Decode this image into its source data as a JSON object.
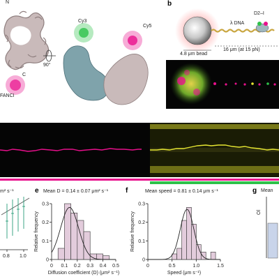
{
  "panel_a": {
    "label_n": "N",
    "label_c": "C",
    "label_fanci": "FANCI",
    "label_cy3": "Cy3",
    "label_cy5": "Cy5",
    "rotation": "90°"
  },
  "panel_b": {
    "letter": "b",
    "dna_label": "λ DNA",
    "complex_label": "D2–I",
    "bead_label": "4.8 μm bead",
    "distance_label": "16 μm (at 15 pN)"
  },
  "panel_d_fragment": {
    "ylabel_fragment": "m² s⁻¹",
    "x_ticks": [
      "0.8",
      "1.0"
    ]
  },
  "panel_e": {
    "letter": "e",
    "title": "Mean D = 0.14 ± 0.07 μm² s⁻¹",
    "chart_data": {
      "type": "bar",
      "title": "Mean D = 0.14 ± 0.07 μm² s⁻¹",
      "xlabel": "Diffusion coefficient (D) (μm² s⁻¹)",
      "ylabel": "Relative frequency",
      "xlim": [
        0,
        0.5
      ],
      "ylim": [
        0,
        0.3
      ],
      "x_ticks": [
        "0",
        "0.1",
        "0.2",
        "0.3",
        "0.4",
        "0.5"
      ],
      "y_ticks": [
        "0",
        "0.1",
        "0.2",
        "0.3"
      ],
      "bin_width": 0.05,
      "bin_starts": [
        0.05,
        0.1,
        0.15,
        0.2,
        0.25,
        0.3,
        0.35,
        0.4
      ],
      "values": [
        0.06,
        0.3,
        0.25,
        0.21,
        0.15,
        0.03,
        0.03,
        0.02
      ],
      "fit_mean": 0.14,
      "fit_sd": 0.07,
      "fit_peak": 0.28
    }
  },
  "panel_f": {
    "letter": "f",
    "title": "Mean speed = 0.81 ± 0.14 μm s⁻¹",
    "chart_data": {
      "type": "bar",
      "title": "Mean speed = 0.81 ± 0.14 μm s⁻¹",
      "xlabel": "Speed (μm s⁻¹)",
      "ylabel": "Relative frequency",
      "xlim": [
        0,
        1.5
      ],
      "ylim": [
        0,
        0.3
      ],
      "x_ticks": [
        "0",
        "0.5",
        "1.0",
        "1.5"
      ],
      "y_ticks": [
        "0",
        "0.1",
        "0.2",
        "0.3"
      ],
      "bin_width": 0.1,
      "bin_starts": [
        0.5,
        0.6,
        0.7,
        0.8,
        0.9,
        1.0,
        1.1,
        1.3
      ],
      "values": [
        0.03,
        0.06,
        0.21,
        0.28,
        0.19,
        0.08,
        0.04,
        0.04
      ],
      "fit_mean": 0.81,
      "fit_sd": 0.14,
      "fit_peak": 0.27
    }
  },
  "panel_g_fragment": {
    "letter": "g",
    "title_fragment": "Mean",
    "ylabel_fragment": "Ol"
  },
  "colors": {
    "magenta": "#e8108c",
    "yellow": "#e6e632",
    "green": "#2ec24a",
    "bar_fill": "#e3ccdc",
    "protein_grey": "#b9a9a9",
    "protein_teal": "#7fa3ab"
  }
}
